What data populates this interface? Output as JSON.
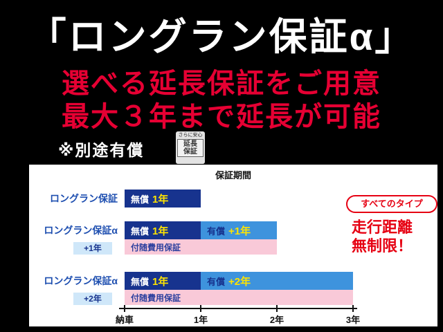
{
  "header": {
    "title": "「ロングラン保証α」",
    "subtitle1": "選べる延長保証をご用意",
    "subtitle2": "最大３年まで延長が可能",
    "note": "※別途有償",
    "stamp": {
      "caption": "さらに安心",
      "line1": "延長",
      "line2": "保証"
    }
  },
  "callout": {
    "pill": "すべてのタイプ",
    "line1": "走行距離",
    "line2": "無制限！"
  },
  "chart_data": {
    "type": "bar",
    "title": "保証期間",
    "x_ticks": [
      "納車",
      "1年",
      "2年",
      "3年"
    ],
    "x_tick_years": [
      0,
      1,
      2,
      3
    ],
    "xlim": [
      0,
      3
    ],
    "unit": "年",
    "rows": [
      {
        "label": "ロングラン保証",
        "extension_badge": null,
        "segments": [
          {
            "kind": "free",
            "prefix": "無償",
            "value": "1年",
            "start": 0,
            "end": 1
          }
        ],
        "cost_coverage": null
      },
      {
        "label": "ロングラン保証α",
        "extension_badge": "+1年",
        "segments": [
          {
            "kind": "free",
            "prefix": "無償",
            "value": "1年",
            "start": 0,
            "end": 1
          },
          {
            "kind": "paid",
            "prefix": "有償",
            "value": "+1年",
            "start": 1,
            "end": 2
          }
        ],
        "cost_coverage": {
          "label": "付随費用保証",
          "start": 0,
          "end": 2
        }
      },
      {
        "label": "ロングラン保証α",
        "extension_badge": "+2年",
        "segments": [
          {
            "kind": "free",
            "prefix": "無償",
            "value": "1年",
            "start": 0,
            "end": 1
          },
          {
            "kind": "paid",
            "prefix": "有償",
            "value": "+2年",
            "start": 1,
            "end": 3
          }
        ],
        "cost_coverage": {
          "label": "付随費用保証",
          "start": 0,
          "end": 3
        }
      }
    ]
  },
  "colors": {
    "background": "#000000",
    "title_text": "#ffffff",
    "subtitle_text": "#e60033",
    "free_bar": "#17338e",
    "paid_bar": "#3e93dd",
    "cost_bar": "#f9c9d8",
    "value_text": "#ffe400",
    "row_label": "#1d4eb0",
    "callout_red": "#e60012",
    "extension_badge_bg": "#cfe7f9"
  }
}
